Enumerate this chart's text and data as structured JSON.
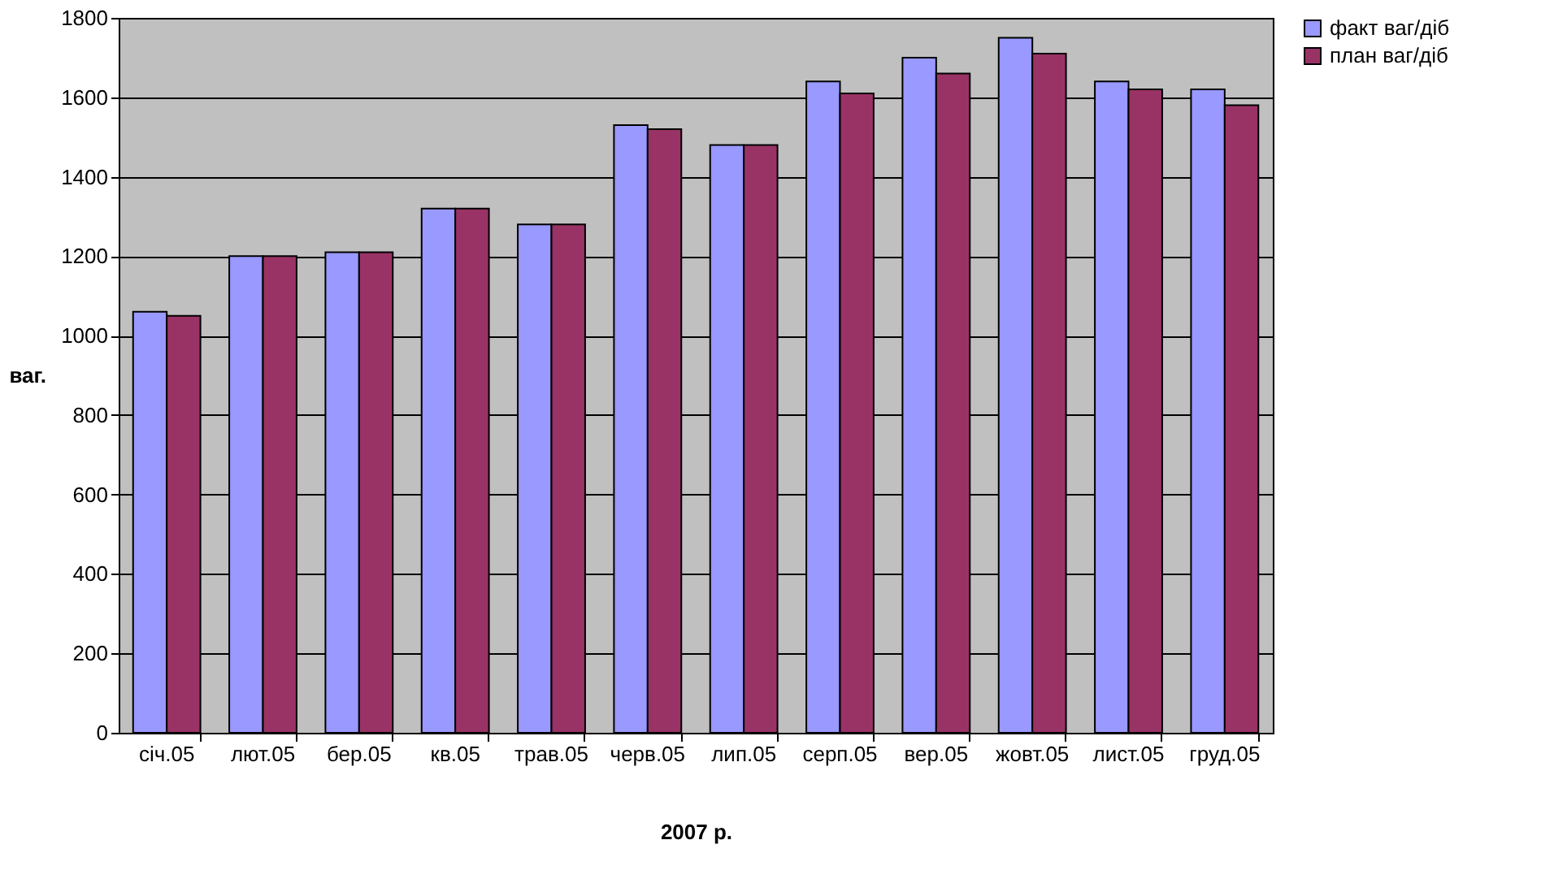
{
  "chart_data": {
    "type": "bar",
    "xlabel": "2007 р.",
    "ylabel": "ваг.",
    "categories": [
      "січ.05",
      "лют.05",
      "бер.05",
      "кв.05",
      "трав.05",
      "черв.05",
      "лип.05",
      "серп.05",
      "вер.05",
      "жовт.05",
      "лист.05",
      "груд.05"
    ],
    "series": [
      {
        "name": "факт ваг/діб",
        "color": "#9999ff",
        "values": [
          1060,
          1200,
          1210,
          1320,
          1280,
          1530,
          1480,
          1640,
          1700,
          1750,
          1640,
          1620
        ]
      },
      {
        "name": "план ваг/діб",
        "color": "#993366",
        "values": [
          1050,
          1200,
          1210,
          1320,
          1280,
          1520,
          1480,
          1610,
          1660,
          1710,
          1620,
          1580
        ]
      }
    ],
    "ylim": [
      0,
      1800
    ],
    "yticks": [
      0,
      200,
      400,
      600,
      800,
      1000,
      1200,
      1400,
      1600,
      1800
    ],
    "grid": "y",
    "legend": "right"
  }
}
